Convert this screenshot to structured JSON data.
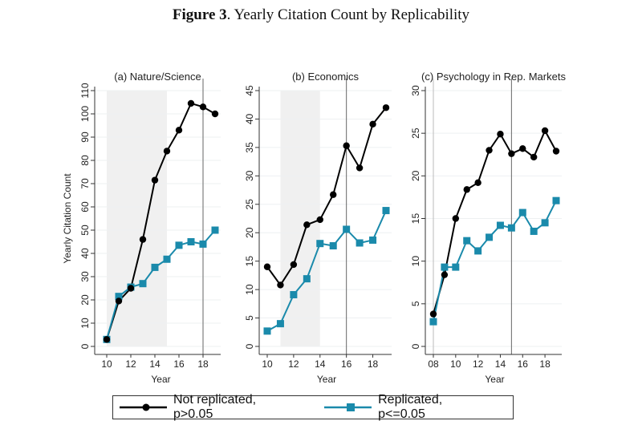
{
  "figure_title": {
    "label": "Figure 3",
    "text": ". Yearly Citation Count by Replicability"
  },
  "colors": {
    "not_replicated": "#000000",
    "replicated": "#1a8aab",
    "shade": "#f0f0f0"
  },
  "legend": [
    "Not replicated, p>0.05",
    "Replicated, p<=0.05"
  ],
  "chart_data": [
    {
      "type": "line",
      "title": "(a) Nature/Science",
      "xlabel": "Year",
      "ylabel": "Yearly Citation Count",
      "xlim": [
        10,
        19
      ],
      "ylim": [
        0,
        110
      ],
      "xticks": [
        "10",
        "12",
        "14",
        "16",
        "18"
      ],
      "xtick_values": [
        10,
        12,
        14,
        16,
        18
      ],
      "yticks": [
        0,
        10,
        20,
        30,
        40,
        50,
        60,
        70,
        80,
        90,
        100,
        110
      ],
      "shaded_x": [
        10,
        15
      ],
      "vlines": [
        18
      ],
      "x": [
        10,
        11,
        12,
        13,
        14,
        15,
        16,
        17,
        18,
        19
      ],
      "series": [
        {
          "name": "Not replicated, p>0.05",
          "values": [
            3,
            19.5,
            25,
            46,
            71.5,
            84,
            93,
            104.5,
            103,
            100
          ]
        },
        {
          "name": "Replicated, p<=0.05",
          "values": [
            3,
            21.5,
            25.5,
            27,
            34,
            37.5,
            43.5,
            45,
            44,
            50
          ]
        }
      ]
    },
    {
      "type": "line",
      "title": "(b) Economics",
      "xlabel": "Year",
      "ylabel": "",
      "xlim": [
        10,
        19
      ],
      "ylim": [
        0,
        45
      ],
      "xticks": [
        "10",
        "12",
        "14",
        "16",
        "18"
      ],
      "xtick_values": [
        10,
        12,
        14,
        16,
        18
      ],
      "yticks": [
        0,
        5,
        10,
        15,
        20,
        25,
        30,
        35,
        40,
        45
      ],
      "shaded_x": [
        11,
        14
      ],
      "vlines": [
        16
      ],
      "x": [
        10,
        11,
        12,
        13,
        14,
        15,
        16,
        17,
        18,
        19
      ],
      "series": [
        {
          "name": "Not replicated, p>0.05",
          "values": [
            14,
            10.8,
            14.4,
            21.4,
            22.3,
            26.7,
            35.3,
            31.4,
            39.1,
            42
          ]
        },
        {
          "name": "Replicated, p<=0.05",
          "values": [
            2.7,
            4,
            9.1,
            11.9,
            18.1,
            17.7,
            20.6,
            18.2,
            18.7,
            23.9
          ]
        }
      ]
    },
    {
      "type": "line",
      "title": "(c) Psychology in Rep. Markets",
      "xlabel": "Year",
      "ylabel": "",
      "xlim": [
        8,
        19
      ],
      "ylim": [
        0,
        30
      ],
      "xticks": [
        "08",
        "10",
        "12",
        "14",
        "16",
        "18"
      ],
      "xtick_values": [
        8,
        10,
        12,
        14,
        16,
        18
      ],
      "yticks": [
        0,
        5,
        10,
        15,
        20,
        25,
        30
      ],
      "shaded_x": null,
      "vlines": [
        8,
        15
      ],
      "x": [
        8,
        9,
        10,
        11,
        12,
        13,
        14,
        15,
        16,
        17,
        18,
        19
      ],
      "series": [
        {
          "name": "Not replicated, p>0.05",
          "values": [
            3.8,
            8.4,
            15,
            18.4,
            19.2,
            23,
            24.9,
            22.6,
            23.2,
            22.2,
            25.3,
            22.9
          ]
        },
        {
          "name": "Replicated, p<=0.05",
          "values": [
            2.9,
            9.3,
            9.3,
            12.4,
            11.2,
            12.8,
            14.2,
            13.9,
            15.7,
            13.5,
            14.5,
            17.1
          ]
        }
      ]
    }
  ]
}
